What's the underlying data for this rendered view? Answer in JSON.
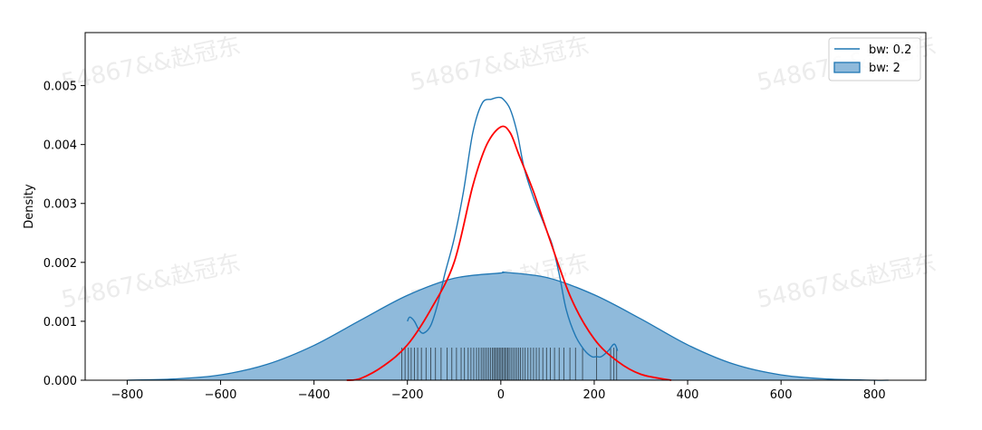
{
  "chart_data": {
    "type": "area",
    "title": "",
    "xlabel": "",
    "ylabel": "Density",
    "xlim": [
      -890,
      910
    ],
    "ylim": [
      0,
      0.0059
    ],
    "xticks": [
      -800,
      -600,
      -400,
      -200,
      0,
      200,
      400,
      600,
      800
    ],
    "xtick_labels": [
      "−800",
      "−600",
      "−400",
      "−200",
      "0",
      "200",
      "400",
      "600",
      "800"
    ],
    "yticks": [
      0,
      0.001,
      0.002,
      0.003,
      0.004,
      0.005
    ],
    "ytick_labels": [
      "0.000",
      "0.001",
      "0.002",
      "0.003",
      "0.004",
      "0.005"
    ],
    "grid": false,
    "legend_position": "top-right",
    "series": [
      {
        "name": "bw: 0.2",
        "kind": "line",
        "color": "#1f77b4",
        "x": [
          -200,
          -195,
          -185,
          -175,
          -165,
          -150,
          -135,
          -120,
          -100,
          -80,
          -60,
          -40,
          -20,
          -5,
          5,
          20,
          35,
          50,
          70,
          90,
          100,
          110,
          125,
          140,
          160,
          180,
          195,
          205,
          215,
          230,
          240,
          245,
          250
        ],
        "y": [
          0.001,
          0.00107,
          0.001,
          0.00085,
          0.0008,
          0.00093,
          0.0013,
          0.0018,
          0.0024,
          0.0032,
          0.0042,
          0.0047,
          0.00477,
          0.0048,
          0.00477,
          0.0046,
          0.0042,
          0.0036,
          0.0031,
          0.0027,
          0.0025,
          0.0023,
          0.0018,
          0.0012,
          0.00075,
          0.0005,
          0.0004,
          0.0004,
          0.0004,
          0.0005,
          0.0006,
          0.0006,
          0.0005
        ]
      },
      {
        "name": "bw: 2",
        "kind": "filled",
        "color": "#1f77b4",
        "fill": "#8fbadb",
        "x": [
          -800,
          -700,
          -600,
          -500,
          -400,
          -300,
          -200,
          -100,
          0,
          10,
          100,
          200,
          300,
          400,
          500,
          600,
          700,
          800,
          830
        ],
        "y": [
          0.0,
          2e-05,
          9e-05,
          0.00027,
          0.00059,
          0.00102,
          0.00144,
          0.00173,
          0.00182,
          0.00183,
          0.00174,
          0.00145,
          0.00104,
          0.0006,
          0.00027,
          9e-05,
          2e-05,
          0.0,
          0.0
        ]
      },
      {
        "kind": "line",
        "color": "#ff0000",
        "x": [
          -330,
          -300,
          -250,
          -200,
          -150,
          -100,
          -60,
          -30,
          0,
          20,
          40,
          70,
          100,
          150,
          200,
          250,
          300,
          365
        ],
        "y": [
          0.0,
          3e-05,
          0.00025,
          0.0006,
          0.0012,
          0.002,
          0.0033,
          0.004,
          0.0043,
          0.0042,
          0.0038,
          0.0032,
          0.0025,
          0.0014,
          0.0007,
          0.00032,
          0.0001,
          0.0
        ]
      }
    ],
    "rug": {
      "color": "#000000",
      "x": [
        -212,
        -205,
        -198,
        -192,
        -185,
        -178,
        -170,
        -160,
        -150,
        -140,
        -128,
        -115,
        -105,
        -95,
        -85,
        -78,
        -70,
        -64,
        -58,
        -52,
        -47,
        -42,
        -38,
        -34,
        -30,
        -26,
        -22,
        -18,
        -15,
        -12,
        -9,
        -6,
        -3,
        0,
        3,
        6,
        9,
        12,
        15,
        18,
        22,
        26,
        30,
        34,
        38,
        42,
        47,
        52,
        58,
        64,
        70,
        76,
        82,
        90,
        98,
        106,
        115,
        125,
        135,
        148,
        160,
        175,
        205,
        235,
        242,
        248
      ]
    }
  },
  "watermark_text": "54867&&赵冠东"
}
